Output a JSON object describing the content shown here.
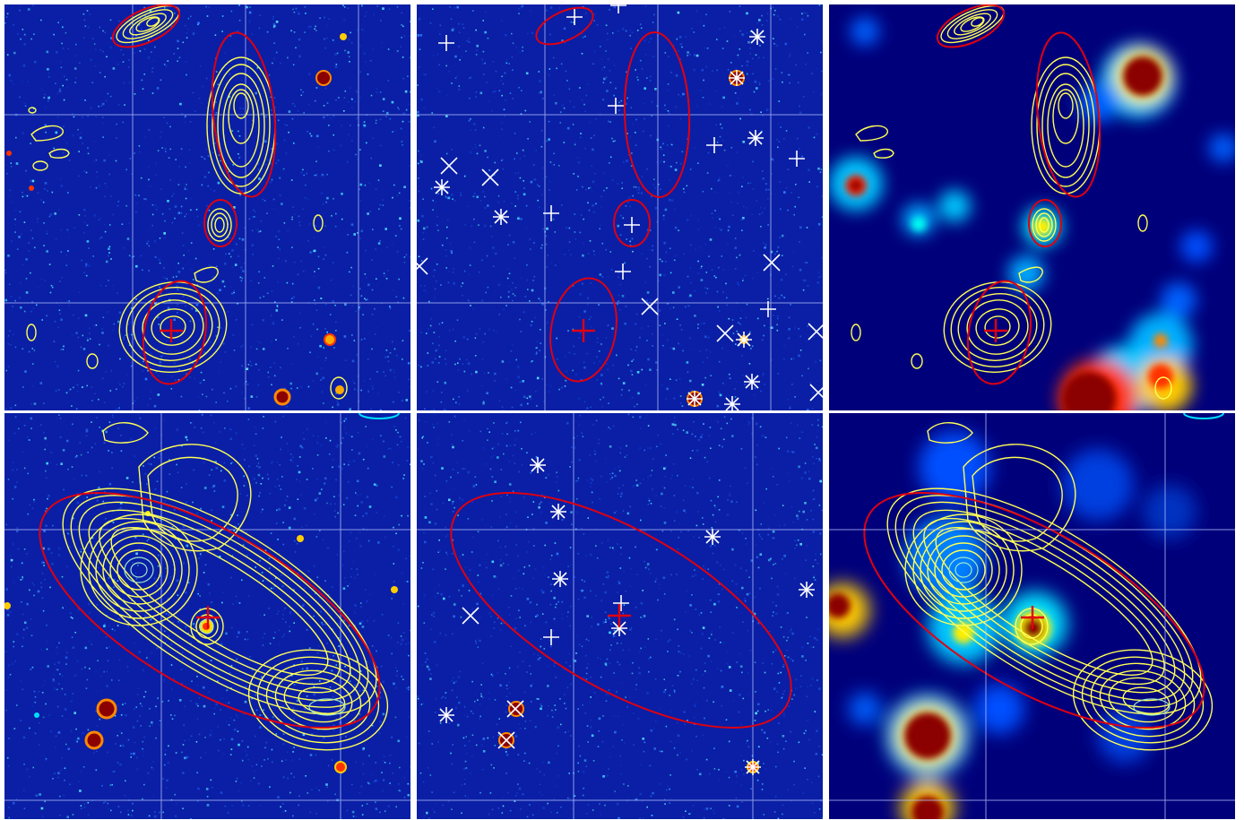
{
  "figure": {
    "colors": {
      "background_dark": "#00007a",
      "background_mid": "#0b2fb8",
      "noise_cyan": "#3fd3ff",
      "contour": "#ffff55",
      "contour_inner": "#9fe8c8",
      "ellipse": "#e00010",
      "cross": "#e00010",
      "grid": "#b8c4ff",
      "marker": "#ffffff",
      "blob_hot": "#8b0000",
      "blob_red": "#ff1a00",
      "blob_yellow": "#ffe600",
      "blob_cyan": "#00d0ff"
    },
    "panels": [
      {
        "id": "top-radio",
        "row": 1,
        "col": 1,
        "kind": "optical-with-radio-contours"
      },
      {
        "id": "top-catalog",
        "row": 1,
        "col": 2,
        "kind": "optical-with-catalog-markers"
      },
      {
        "id": "top-smoothed",
        "row": 1,
        "col": 3,
        "kind": "smoothed-with-radio-contours"
      },
      {
        "id": "bottom-radio",
        "row": 2,
        "col": 1,
        "kind": "optical-with-radio-contours"
      },
      {
        "id": "bottom-catalog",
        "row": 2,
        "col": 2,
        "kind": "optical-with-catalog-markers"
      },
      {
        "id": "bottom-smoothed",
        "row": 2,
        "col": 3,
        "kind": "smoothed-with-radio-contours"
      }
    ]
  }
}
